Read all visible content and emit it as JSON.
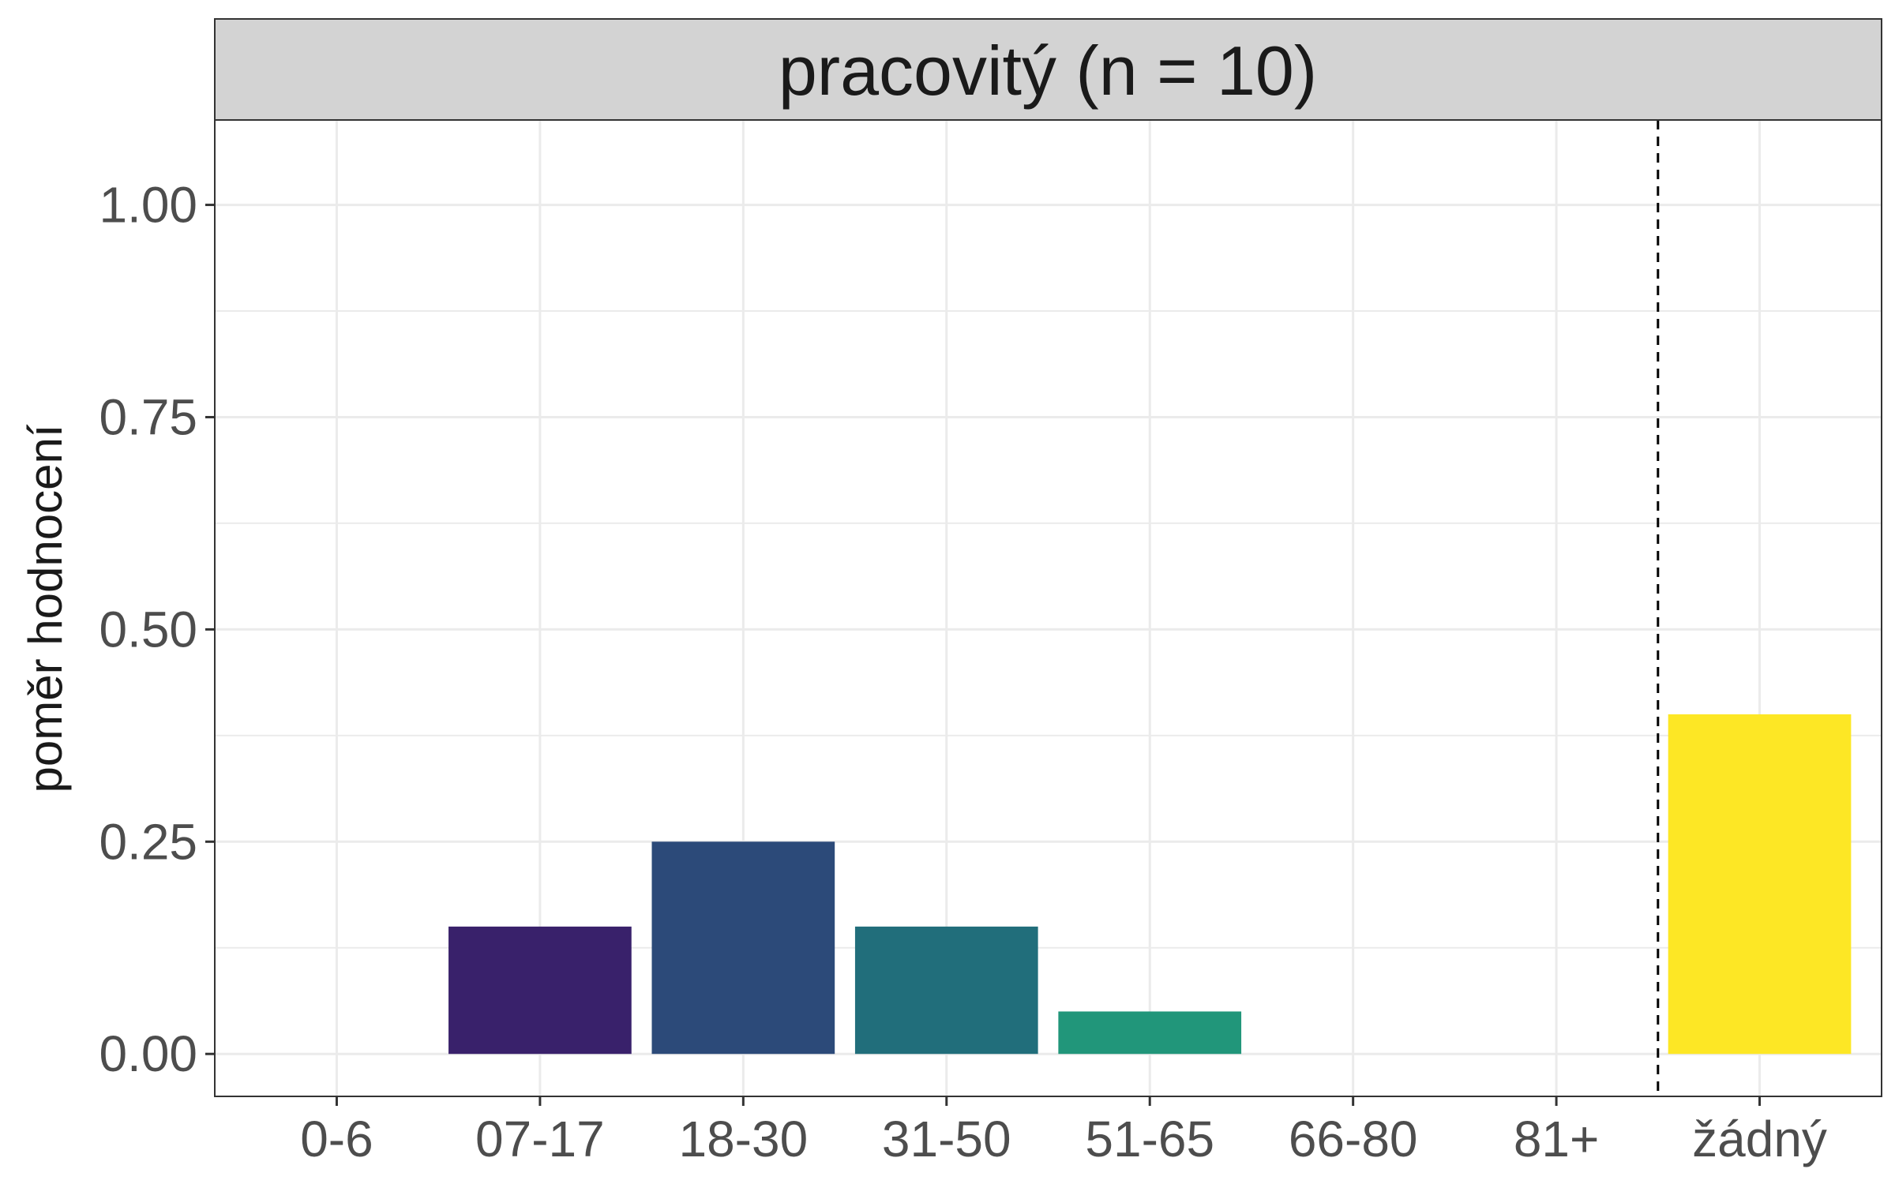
{
  "chart_data": {
    "type": "bar",
    "facet_title": "pracovitý (n = 10)",
    "xlabel": "",
    "ylabel": "poměr hodnocení",
    "categories": [
      "0-6",
      "07-17",
      "18-30",
      "31-50",
      "51-65",
      "66-80",
      "81+",
      "žádný"
    ],
    "values": [
      0,
      0.15,
      0.25,
      0.15,
      0.05,
      0,
      0,
      0.4
    ],
    "colors": [
      "#440154",
      "#39216b",
      "#2c4a79",
      "#216e7b",
      "#21967a",
      "#22b378",
      "#7ad151",
      "#fde725"
    ],
    "ylim": [
      -0.05,
      1.1
    ],
    "yticks": [
      0,
      0.25,
      0.5,
      0.75,
      1.0
    ],
    "ytick_labels": [
      "0.00",
      "0.25",
      "0.50",
      "0.75",
      "1.00"
    ],
    "reference_line": {
      "between": [
        "81+",
        "žádný"
      ],
      "style": "dashed"
    },
    "grid": true,
    "legend": "none"
  }
}
